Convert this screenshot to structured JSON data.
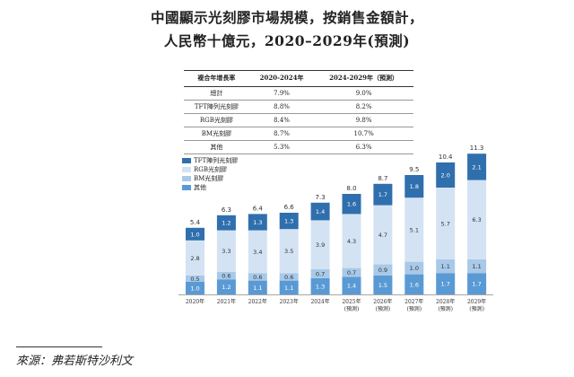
{
  "title_line1": "中國顯示光刻膠市場規模，按銷售金額計，",
  "title_line2": "人民幣十億元，2020–2029年(預測)",
  "cagr_table": {
    "header_label": "複合年增長率",
    "header_col1": "2020-2024年",
    "header_col2": "2024-2029年（預測）",
    "rows": [
      {
        "label": "總計",
        "c1": "7.9%",
        "c2": "9.0%"
      },
      {
        "label": "TFT陣列光刻膠",
        "c1": "8.8%",
        "c2": "8.2%"
      },
      {
        "label": "RGB光刻膠",
        "c1": "8.4%",
        "c2": "9.8%"
      },
      {
        "label": "BM光刻膠",
        "c1": "8.7%",
        "c2": "10.7%"
      },
      {
        "label": "其他",
        "c1": "5.3%",
        "c2": "6.3%"
      }
    ]
  },
  "colors": {
    "tft": "#2f6fad",
    "rgb": "#d4e3f3",
    "bm": "#a9c9e8",
    "other": "#5a9ad4"
  },
  "chart_data": {
    "type": "bar",
    "stacked": true,
    "categories": [
      "2020年",
      "2021年",
      "2022年",
      "2023年",
      "2024年",
      "2025年",
      "2026年",
      "2027年",
      "2028年",
      "2029年"
    ],
    "sub_labels": [
      "",
      "",
      "",
      "",
      "",
      "(預測)",
      "(預測)",
      "(預測)",
      "(預測)",
      "(預測)"
    ],
    "totals": [
      "5.4",
      "6.3",
      "6.4",
      "6.6",
      "7.3",
      "8.0",
      "8.7",
      "9.5",
      "10.4",
      "11.3"
    ],
    "series": [
      {
        "name": "其他",
        "color_key": "other",
        "values": [
          1.0,
          1.2,
          1.1,
          1.1,
          1.3,
          1.4,
          1.5,
          1.6,
          1.7,
          1.7
        ],
        "labels": [
          "1.0",
          "1.2",
          "1.1",
          "1.1",
          "1.3",
          "1.4",
          "1.5",
          "1.6",
          "1.7",
          "1.7"
        ]
      },
      {
        "name": "BM光刻膠",
        "color_key": "bm",
        "values": [
          0.5,
          0.6,
          0.6,
          0.6,
          0.7,
          0.7,
          0.9,
          1.0,
          1.1,
          1.1
        ],
        "labels": [
          "0.5",
          "0.6",
          "0.6",
          "0.6",
          "0.7",
          "0.7",
          "0.9",
          "1.0",
          "1.1",
          "1.1"
        ]
      },
      {
        "name": "RGB光刻膠",
        "color_key": "rgb",
        "values": [
          2.8,
          3.3,
          3.4,
          3.5,
          3.9,
          4.3,
          4.7,
          5.1,
          5.7,
          6.3
        ],
        "labels": [
          "2.8",
          "3.3",
          "3.4",
          "3.5",
          "3.9",
          "4.3",
          "4.7",
          "5.1",
          "5.7",
          "6.3"
        ]
      },
      {
        "name": "TFT陣列光刻膠",
        "color_key": "tft",
        "values": [
          1.0,
          1.2,
          1.3,
          1.3,
          1.4,
          1.6,
          1.7,
          1.8,
          2.0,
          2.1
        ],
        "labels": [
          "1.0",
          "1.2",
          "1.3",
          "1.3",
          "1.4",
          "1.6",
          "1.7",
          "1.8",
          "2.0",
          "2.1"
        ]
      }
    ],
    "legend": [
      "TFT陣列光刻膠",
      "RGB光刻膠",
      "BM光刻膠",
      "其他"
    ],
    "ylim": [
      0,
      12
    ]
  },
  "source": "來源：弗若斯特沙利文"
}
